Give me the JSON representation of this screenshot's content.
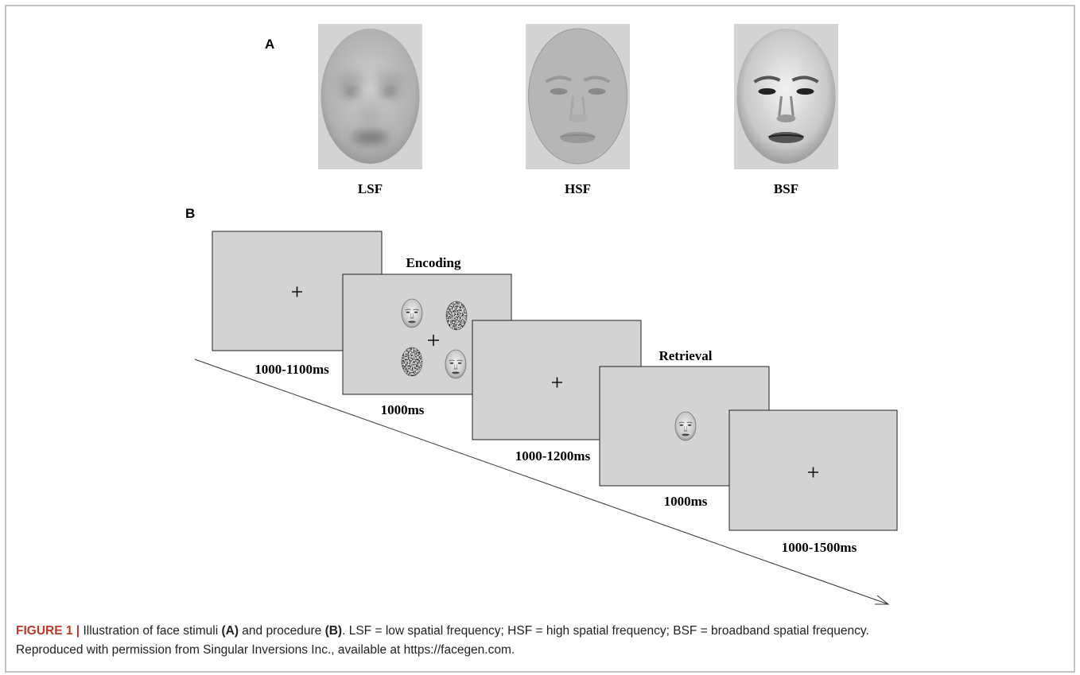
{
  "panel_a": {
    "label": "A",
    "stimuli": [
      {
        "label": "LSF"
      },
      {
        "label": "HSF"
      },
      {
        "label": "BSF"
      }
    ]
  },
  "panel_b": {
    "label": "B",
    "screens": [
      {
        "duration": "1000-1100ms"
      },
      {
        "title": "Encoding",
        "duration": "1000ms"
      },
      {
        "duration": "1000-1200ms"
      },
      {
        "title": "Retrieval",
        "duration": "1000ms"
      },
      {
        "duration": "1000-1500ms"
      }
    ]
  },
  "caption": {
    "line_1": [
      {
        "text": "FIGURE 1 |",
        "bold": true
      },
      {
        "text": " Illustration of face stimuli ",
        "bold": false
      },
      {
        "text": "(A)",
        "bold": true
      },
      {
        "text": " and procedure ",
        "bold": false
      },
      {
        "text": "(B)",
        "bold": true
      },
      {
        "text": ". LSF = low spatial frequency; HSF = high spatial frequency; BSF = broadband spatial frequency.",
        "bold": false
      }
    ],
    "line_2": "Reproduced with permission from Singular Inversions Inc., available at https://facegen.com."
  }
}
